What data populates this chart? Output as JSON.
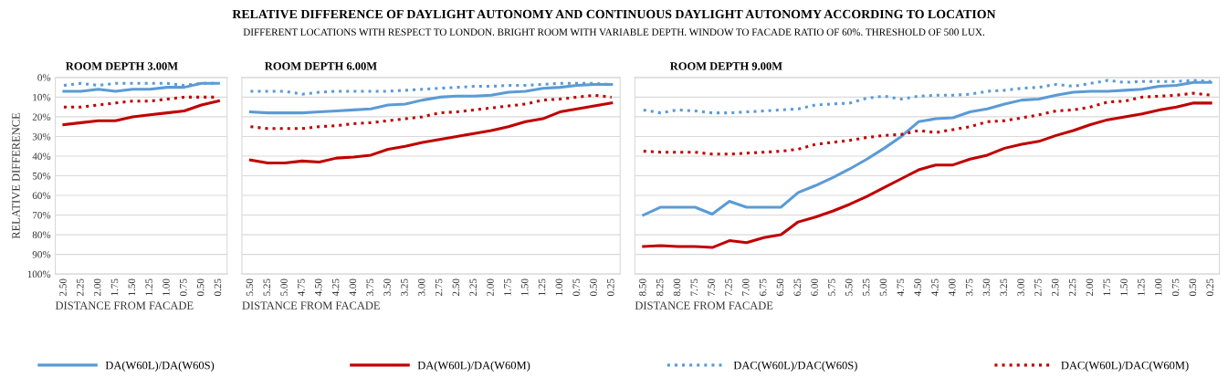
{
  "chart_data": [
    {
      "type": "line",
      "title": "ROOM DEPTH 3.00M",
      "xlabel": "DISTANCE FROM FACADE",
      "ylabel": "RELATIVE DIFFERENCE",
      "annotations": [
        "RELATIVE DIFFERENCE OF DAYLIGHT AUTONOMY AND CONTINUOUS DAYLIGHT AUTONOMY ACCORDING TO LOCATION",
        "DIFFERENT LOCATIONS WITH RESPECT TO LONDON. BRIGHT ROOM WITH VARIABLE DEPTH. WINDOW TO FACADE RATIO OF 60%. THRESHOLD OF 500 LUX."
      ],
      "categories": [
        "2.50",
        "2.25",
        "2.00",
        "1.75",
        "1.50",
        "1.25",
        "1.00",
        "0.75",
        "0.50",
        "0.25"
      ],
      "series": [
        {
          "name": "DA(W60L)/DA(W60S)",
          "color": "#5b9bd5",
          "line_style": "solid",
          "values": [
            7,
            7,
            6,
            7,
            6,
            6,
            5,
            5,
            3,
            3
          ]
        },
        {
          "name": "DA(W60L)/DA(W60M)",
          "color": "#c00000",
          "line_style": "solid",
          "values": [
            24,
            23,
            22,
            22,
            20,
            19,
            18,
            17,
            14,
            12
          ]
        },
        {
          "name": "DAC(W60L)/DAC(W60S)",
          "color": "#5b9bd5",
          "line_style": "dotted",
          "values": [
            4,
            3,
            4,
            3,
            3,
            3,
            3,
            4,
            3,
            3
          ]
        },
        {
          "name": "DAC(W60L)/DAC(W60M)",
          "color": "#c00000",
          "line_style": "dotted",
          "values": [
            15,
            15,
            14,
            13,
            12,
            12,
            11,
            10,
            10,
            10
          ]
        }
      ],
      "ylim": [
        100,
        0
      ],
      "yticks": [
        {
          "value": 0,
          "label": "0%"
        },
        {
          "value": 10,
          "label": "10%"
        },
        {
          "value": 20,
          "label": "20%"
        },
        {
          "value": 30,
          "label": "30%"
        },
        {
          "value": 40,
          "label": "40%"
        },
        {
          "value": 50,
          "label": "50%"
        },
        {
          "value": 60,
          "label": "60%"
        },
        {
          "value": 70,
          "label": "70%"
        },
        {
          "value": 80,
          "label": "80%"
        },
        {
          "value": 90,
          "label": "90%"
        },
        {
          "value": 100,
          "label": "100%"
        }
      ],
      "grid": "y",
      "legend": "bottom"
    },
    {
      "type": "line",
      "title": "ROOM DEPTH 6.00M",
      "xlabel": "DISTANCE FROM FACADE",
      "categories": [
        "5.50",
        "5.25",
        "5.00",
        "4.75",
        "4.50",
        "4.25",
        "4.00",
        "3.75",
        "3.50",
        "3.25",
        "3.00",
        "2.75",
        "2.50",
        "2.25",
        "2.00",
        "1.75",
        "1.50",
        "1.25",
        "1.00",
        "0.75",
        "0.50",
        "0.25"
      ],
      "series": [
        {
          "color": "#5b9bd5",
          "line_style": "solid",
          "values": [
            17.5,
            18,
            18,
            18,
            17.5,
            17,
            16.5,
            16,
            14,
            13.5,
            11.5,
            10,
            9.5,
            9.5,
            9,
            7.5,
            7,
            5.5,
            5,
            4,
            3.5,
            3.5
          ]
        },
        {
          "color": "#c00000",
          "line_style": "solid",
          "values": [
            42,
            43.5,
            43.5,
            42.5,
            43,
            41,
            40.5,
            39.5,
            36.5,
            35,
            33,
            31.5,
            30,
            28.5,
            27,
            25,
            22.5,
            21,
            17.5,
            16,
            14.5,
            13
          ]
        },
        {
          "color": "#5b9bd5",
          "line_style": "dotted",
          "values": [
            7,
            7,
            7,
            8.5,
            7.5,
            7,
            7,
            7,
            7,
            6.5,
            6,
            5.5,
            5,
            4.5,
            4.5,
            4,
            4,
            3.5,
            3,
            3,
            3,
            3.5
          ]
        },
        {
          "color": "#c00000",
          "line_style": "dotted",
          "values": [
            25,
            26,
            26,
            26,
            25,
            24.5,
            23.5,
            23,
            22,
            21,
            20,
            18,
            17.5,
            16.5,
            15.5,
            14.5,
            13.5,
            11.5,
            11,
            10,
            9,
            10
          ]
        }
      ],
      "ylim": [
        100,
        0
      ],
      "yticks": [
        0,
        10,
        20,
        30,
        40,
        50,
        60,
        70,
        80,
        90,
        100
      ],
      "tick_labels": "x",
      "grid": "y"
    },
    {
      "type": "line",
      "title": "ROOM DEPTH 9.00M",
      "xlabel": "DISTANCE FROM FACADE",
      "categories": [
        "8.50",
        "8.25",
        "8.00",
        "7.75",
        "7.50",
        "7.25",
        "7.00",
        "6.75",
        "6.50",
        "6.25",
        "6.00",
        "5.75",
        "5.50",
        "5.25",
        "5.00",
        "4.75",
        "4.50",
        "4.25",
        "4.00",
        "3.75",
        "3.50",
        "3.25",
        "3.00",
        "2.75",
        "2.50",
        "2.25",
        "2.00",
        "1.75",
        "1.50",
        "1.25",
        "1.00",
        "0.75",
        "0.50",
        "0.25"
      ],
      "series": [
        {
          "color": "#5b9bd5",
          "line_style": "solid",
          "values": [
            70,
            66,
            66,
            66,
            69.5,
            63,
            66,
            66,
            66,
            58.5,
            55,
            51,
            46.5,
            41.5,
            36,
            30,
            22.5,
            21,
            20.5,
            17.5,
            16,
            13.5,
            11.5,
            11,
            9,
            7.5,
            7,
            7,
            6.5,
            6,
            4.5,
            4,
            2.5,
            2.5
          ]
        },
        {
          "color": "#c00000",
          "line_style": "solid",
          "values": [
            86,
            85.5,
            86,
            86,
            86.5,
            83,
            84,
            81.5,
            80,
            73.5,
            71,
            68,
            64.5,
            60.5,
            56,
            51.5,
            47,
            44.5,
            44.5,
            41.5,
            39.5,
            36,
            34,
            32.5,
            29.5,
            27,
            24,
            21.5,
            20,
            18.5,
            16.5,
            15,
            13,
            13
          ]
        },
        {
          "color": "#5b9bd5",
          "line_style": "dotted",
          "values": [
            16.5,
            18,
            16.5,
            17,
            18,
            18,
            17.5,
            17,
            16.5,
            16,
            14,
            13.5,
            13,
            10.5,
            9.5,
            11,
            9.5,
            9,
            9,
            8.5,
            7,
            6.5,
            5.5,
            5,
            3.5,
            4.5,
            3,
            1.5,
            2.5,
            2,
            2,
            2,
            1.5,
            2
          ]
        },
        {
          "color": "#c00000",
          "line_style": "dotted",
          "values": [
            37.5,
            38,
            38,
            38,
            39,
            39,
            38.5,
            38,
            37.5,
            36.5,
            34,
            33,
            32,
            30.5,
            29.5,
            29,
            27,
            28,
            26.5,
            25,
            22.5,
            22,
            20.5,
            19,
            17,
            16.5,
            15,
            12.5,
            12,
            10,
            9.5,
            9,
            8,
            9
          ]
        }
      ],
      "ylim": [
        100,
        0
      ],
      "yticks": [
        0,
        10,
        20,
        30,
        40,
        50,
        60,
        70,
        80,
        90,
        100
      ],
      "tick_labels": "x",
      "grid": "y"
    }
  ]
}
